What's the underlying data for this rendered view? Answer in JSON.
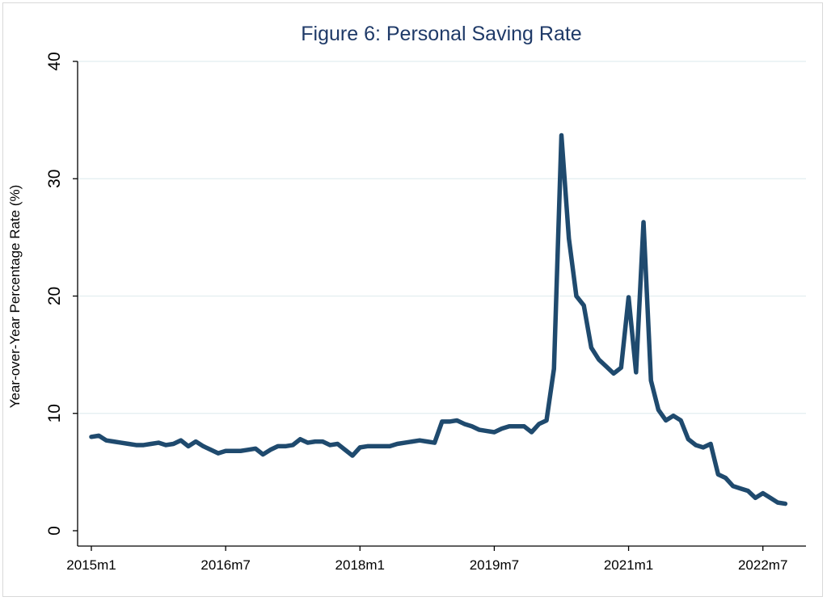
{
  "chart_data": {
    "type": "line",
    "title": "Figure 6: Personal Saving Rate",
    "xlabel": "",
    "ylabel": "Year-over-Year Percentage Rate (%)",
    "ylim": [
      0,
      40
    ],
    "yticks": [
      0,
      10,
      20,
      30,
      40
    ],
    "xtick_labels": [
      "2015m1",
      "2016m7",
      "2018m1",
      "2019m7",
      "2021m1",
      "2022m7"
    ],
    "xtick_index": [
      0,
      18,
      36,
      54,
      72,
      90
    ],
    "grid": true,
    "series": [
      {
        "name": "Personal Saving Rate",
        "color": "#1f4a6e",
        "start": "2015m1",
        "values": [
          8.0,
          8.1,
          7.7,
          7.6,
          7.5,
          7.4,
          7.3,
          7.3,
          7.4,
          7.5,
          7.3,
          7.4,
          7.7,
          7.2,
          7.6,
          7.2,
          6.9,
          6.6,
          6.8,
          6.8,
          6.8,
          6.9,
          7.0,
          6.5,
          6.9,
          7.2,
          7.2,
          7.3,
          7.8,
          7.5,
          7.6,
          7.6,
          7.3,
          7.4,
          6.9,
          6.4,
          7.1,
          7.2,
          7.2,
          7.2,
          7.2,
          7.4,
          7.5,
          7.6,
          7.7,
          7.6,
          7.5,
          9.3,
          9.3,
          9.4,
          9.1,
          8.9,
          8.6,
          8.5,
          8.4,
          8.7,
          8.9,
          8.9,
          8.9,
          8.4,
          9.1,
          9.4,
          13.8,
          33.7,
          24.9,
          20.0,
          19.2,
          15.6,
          14.6,
          14.0,
          13.4,
          13.9,
          19.9,
          13.5,
          26.3,
          12.8,
          10.3,
          9.4,
          9.8,
          9.4,
          7.8,
          7.3,
          7.1,
          7.4,
          4.8,
          4.5,
          3.8,
          3.6,
          3.4,
          2.8,
          3.2,
          2.8,
          2.4,
          2.3
        ]
      }
    ]
  }
}
